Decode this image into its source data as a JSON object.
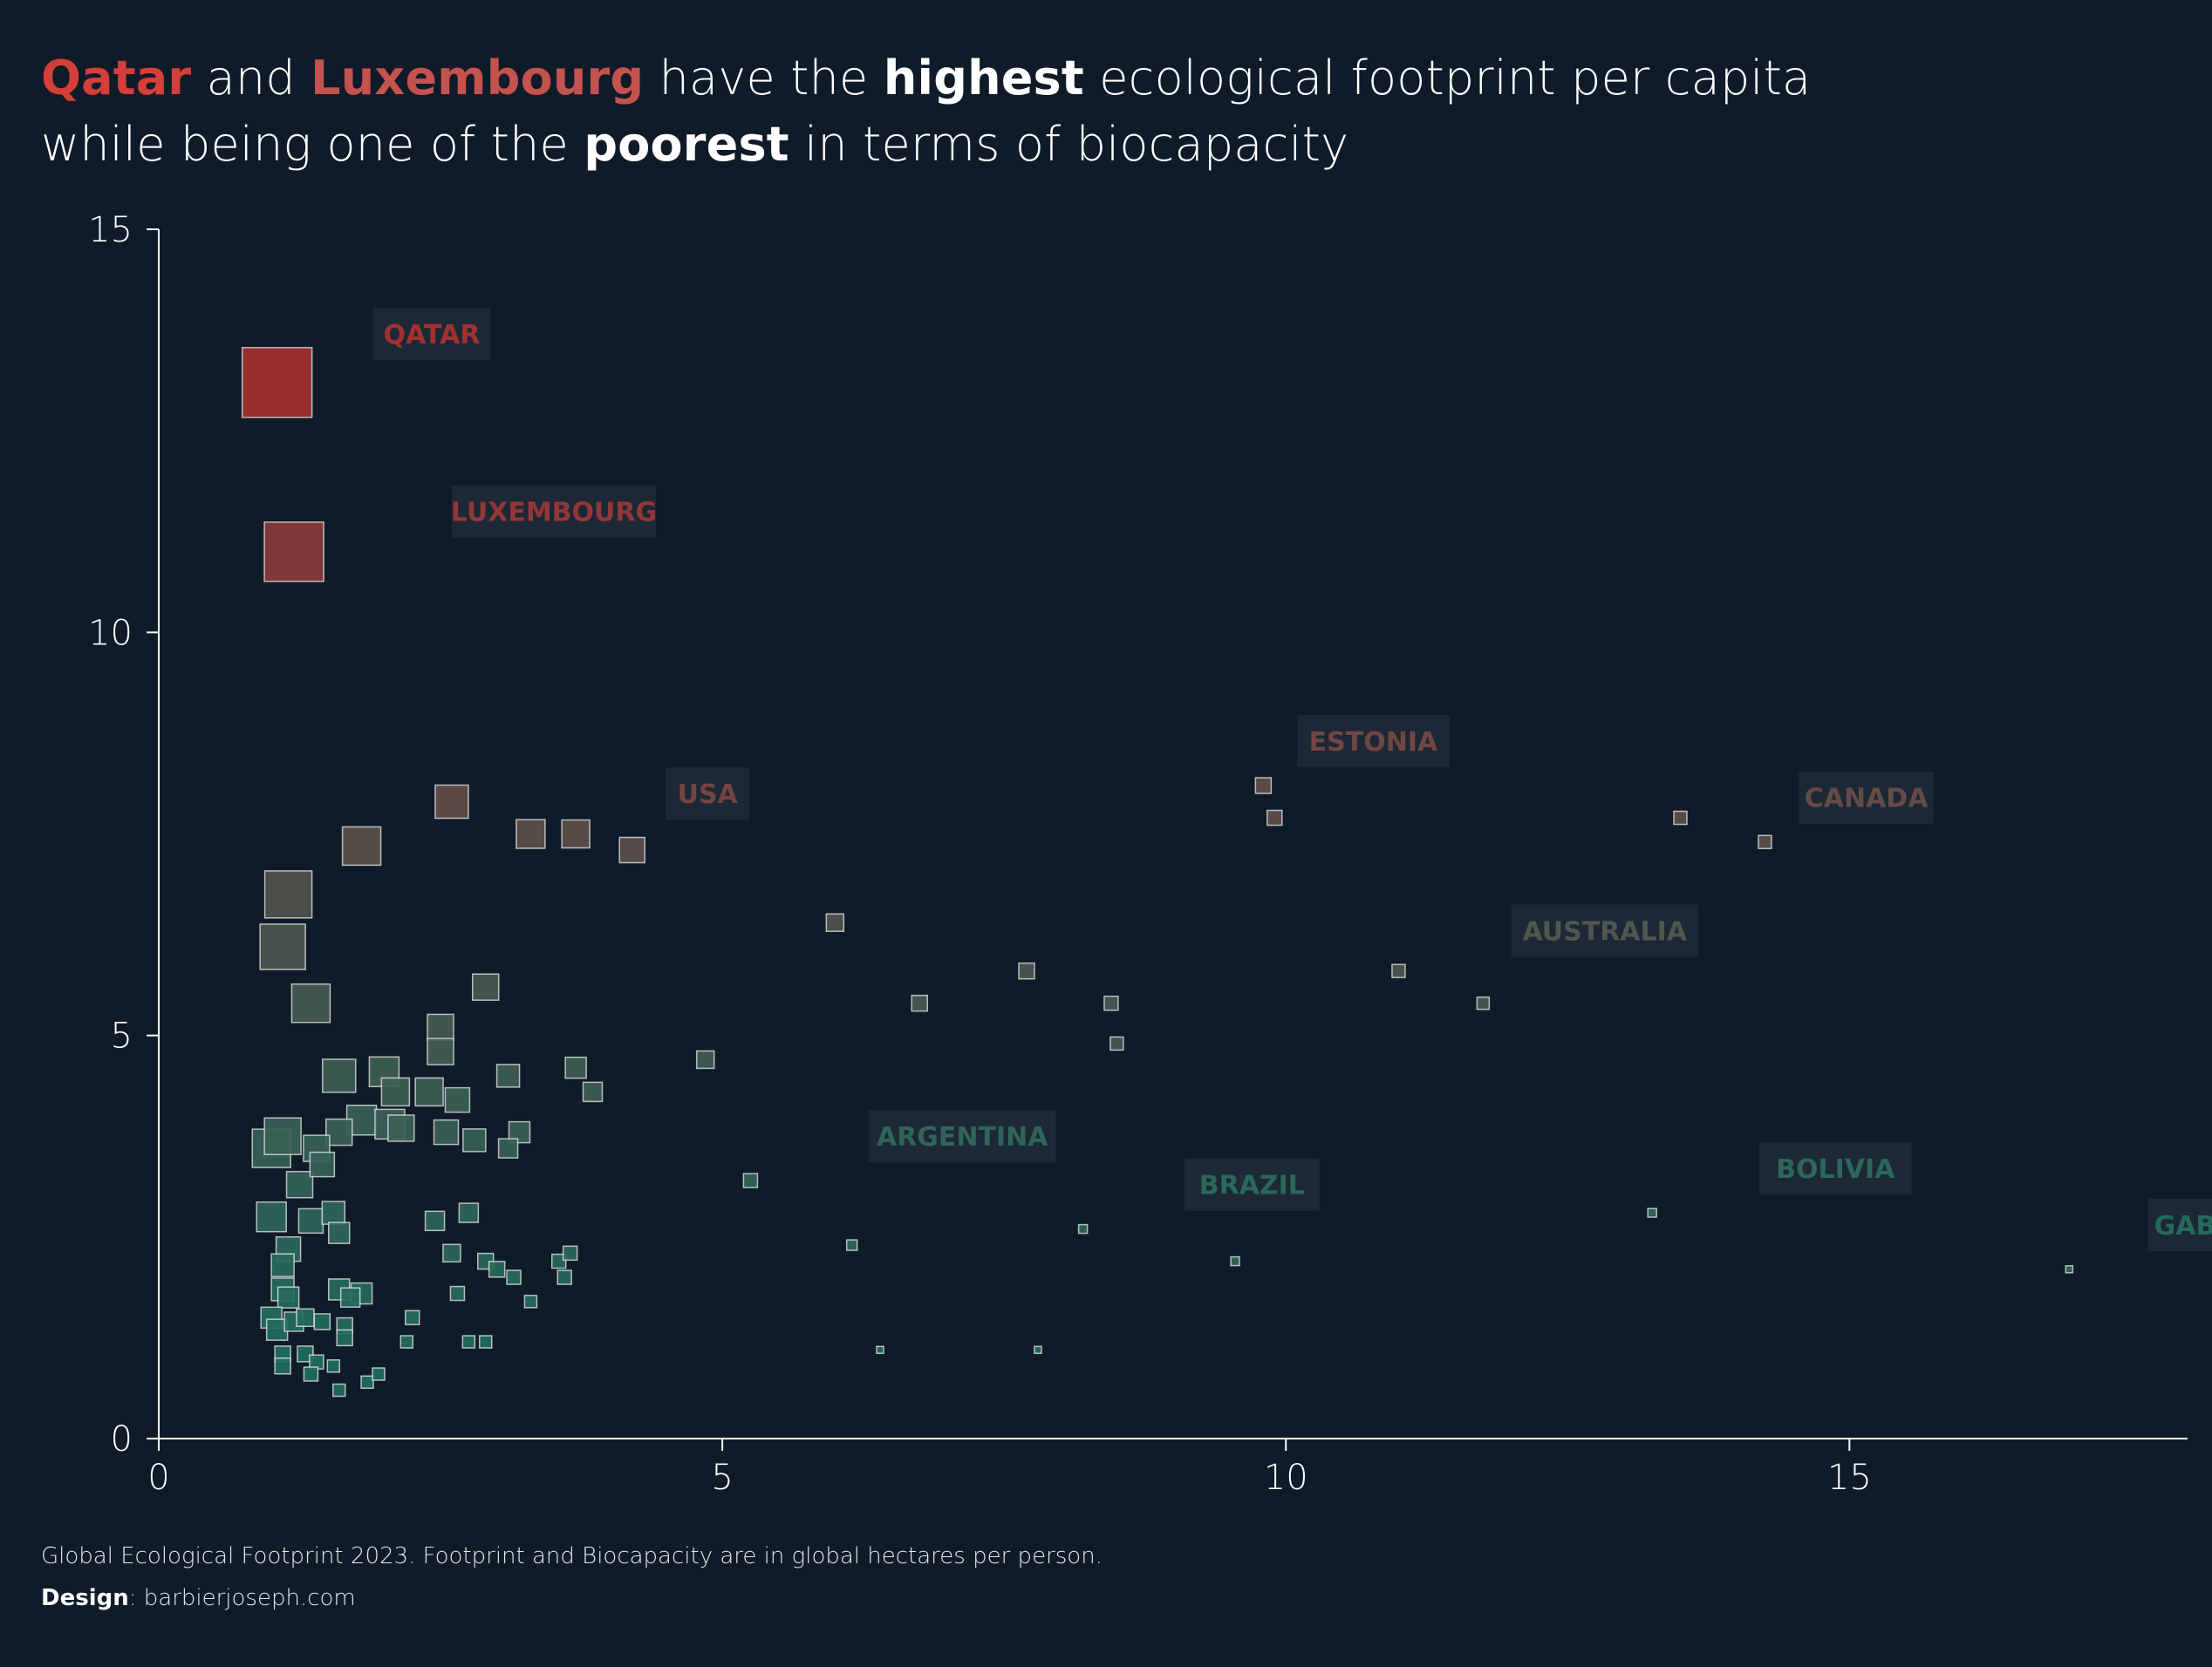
{
  "title": {
    "line1": {
      "w1": "Qatar",
      "w2": " and ",
      "w3": "Luxembourg",
      "w4": " have the ",
      "w5": "highest",
      "w6": " ecological footprint per capita"
    },
    "line2": {
      "w1": "while being one of the ",
      "w2": "poorest",
      "w3": " in terms of biocapacity"
    }
  },
  "footer": {
    "source": "Global Ecological Footprint 2023. Footprint and Biocapacity are in global hectares per person.",
    "design_label": "Design",
    "design_value": ": barbierjoseph.com"
  },
  "colors": {
    "background": "#101b29",
    "high": "#a3302f",
    "low": "#1f6d5e",
    "label_box": "#1f2937",
    "axis": "#ffffff"
  },
  "chart_data": {
    "type": "scatter",
    "xlim": [
      0,
      18
    ],
    "ylim": [
      0,
      15
    ],
    "xticks": [
      0,
      5,
      10,
      15
    ],
    "yticks": [
      0,
      5,
      10,
      15
    ],
    "xlabel": "",
    "ylabel": "",
    "points": [
      {
        "x": 1.05,
        "y": 13.1,
        "s": 80
      },
      {
        "x": 1.2,
        "y": 11.0,
        "s": 68
      },
      {
        "x": 1.15,
        "y": 6.75,
        "s": 54
      },
      {
        "x": 1.1,
        "y": 6.1,
        "s": 52
      },
      {
        "x": 1.35,
        "y": 5.4,
        "s": 44
      },
      {
        "x": 1.8,
        "y": 7.35,
        "s": 44
      },
      {
        "x": 2.6,
        "y": 7.9,
        "s": 38
      },
      {
        "x": 3.3,
        "y": 7.5,
        "s": 33
      },
      {
        "x": 3.7,
        "y": 7.5,
        "s": 32
      },
      {
        "x": 4.2,
        "y": 7.3,
        "s": 29
      },
      {
        "x": 2.9,
        "y": 5.6,
        "s": 30
      },
      {
        "x": 2.5,
        "y": 5.1,
        "s": 30
      },
      {
        "x": 2.5,
        "y": 4.8,
        "s": 30
      },
      {
        "x": 1.6,
        "y": 4.5,
        "s": 38
      },
      {
        "x": 2.0,
        "y": 4.55,
        "s": 34
      },
      {
        "x": 2.1,
        "y": 4.3,
        "s": 32
      },
      {
        "x": 2.4,
        "y": 4.3,
        "s": 32
      },
      {
        "x": 2.65,
        "y": 4.2,
        "s": 28
      },
      {
        "x": 3.1,
        "y": 4.5,
        "s": 26
      },
      {
        "x": 3.7,
        "y": 4.6,
        "s": 24
      },
      {
        "x": 3.85,
        "y": 4.3,
        "s": 22
      },
      {
        "x": 1.8,
        "y": 3.95,
        "s": 34
      },
      {
        "x": 2.05,
        "y": 3.9,
        "s": 34
      },
      {
        "x": 2.15,
        "y": 3.85,
        "s": 30
      },
      {
        "x": 1.6,
        "y": 3.8,
        "s": 30
      },
      {
        "x": 1.1,
        "y": 3.75,
        "s": 42
      },
      {
        "x": 1.0,
        "y": 3.6,
        "s": 44
      },
      {
        "x": 1.4,
        "y": 3.6,
        "s": 30
      },
      {
        "x": 1.45,
        "y": 3.4,
        "s": 28
      },
      {
        "x": 2.55,
        "y": 3.8,
        "s": 28
      },
      {
        "x": 2.8,
        "y": 3.7,
        "s": 26
      },
      {
        "x": 3.2,
        "y": 3.8,
        "s": 24
      },
      {
        "x": 3.1,
        "y": 3.6,
        "s": 22
      },
      {
        "x": 1.25,
        "y": 3.15,
        "s": 30
      },
      {
        "x": 1.0,
        "y": 2.75,
        "s": 34
      },
      {
        "x": 1.35,
        "y": 2.7,
        "s": 28
      },
      {
        "x": 1.55,
        "y": 2.8,
        "s": 26
      },
      {
        "x": 1.6,
        "y": 2.55,
        "s": 24
      },
      {
        "x": 1.15,
        "y": 2.35,
        "s": 28
      },
      {
        "x": 1.1,
        "y": 2.15,
        "s": 26
      },
      {
        "x": 2.45,
        "y": 2.7,
        "s": 22
      },
      {
        "x": 2.75,
        "y": 2.8,
        "s": 22
      },
      {
        "x": 2.6,
        "y": 2.3,
        "s": 20
      },
      {
        "x": 2.9,
        "y": 2.2,
        "s": 18
      },
      {
        "x": 3.0,
        "y": 2.1,
        "s": 18
      },
      {
        "x": 3.15,
        "y": 2.0,
        "s": 16
      },
      {
        "x": 3.55,
        "y": 2.2,
        "s": 16
      },
      {
        "x": 3.65,
        "y": 2.3,
        "s": 16
      },
      {
        "x": 3.6,
        "y": 2.0,
        "s": 16
      },
      {
        "x": 1.1,
        "y": 1.85,
        "s": 26
      },
      {
        "x": 1.15,
        "y": 1.75,
        "s": 24
      },
      {
        "x": 1.6,
        "y": 1.85,
        "s": 24
      },
      {
        "x": 1.8,
        "y": 1.8,
        "s": 24
      },
      {
        "x": 1.7,
        "y": 1.75,
        "s": 22
      },
      {
        "x": 1.0,
        "y": 1.5,
        "s": 24
      },
      {
        "x": 1.05,
        "y": 1.35,
        "s": 24
      },
      {
        "x": 1.2,
        "y": 1.45,
        "s": 22
      },
      {
        "x": 1.3,
        "y": 1.5,
        "s": 20
      },
      {
        "x": 1.45,
        "y": 1.45,
        "s": 18
      },
      {
        "x": 1.65,
        "y": 1.4,
        "s": 18
      },
      {
        "x": 1.65,
        "y": 1.25,
        "s": 18
      },
      {
        "x": 1.1,
        "y": 1.05,
        "s": 18
      },
      {
        "x": 1.3,
        "y": 1.05,
        "s": 18
      },
      {
        "x": 1.4,
        "y": 0.95,
        "s": 16
      },
      {
        "x": 1.55,
        "y": 0.9,
        "s": 14
      },
      {
        "x": 1.1,
        "y": 0.9,
        "s": 18
      },
      {
        "x": 1.35,
        "y": 0.8,
        "s": 16
      },
      {
        "x": 1.6,
        "y": 0.6,
        "s": 14
      },
      {
        "x": 1.85,
        "y": 0.7,
        "s": 14
      },
      {
        "x": 1.95,
        "y": 0.8,
        "s": 14
      },
      {
        "x": 2.25,
        "y": 1.5,
        "s": 16
      },
      {
        "x": 2.2,
        "y": 1.2,
        "s": 14
      },
      {
        "x": 2.65,
        "y": 1.8,
        "s": 16
      },
      {
        "x": 2.75,
        "y": 1.2,
        "s": 14
      },
      {
        "x": 2.9,
        "y": 1.2,
        "s": 14
      },
      {
        "x": 3.3,
        "y": 1.7,
        "s": 14
      },
      {
        "x": 4.85,
        "y": 4.7,
        "s": 20
      },
      {
        "x": 5.25,
        "y": 3.2,
        "s": 16
      },
      {
        "x": 6.0,
        "y": 6.4,
        "s": 20
      },
      {
        "x": 6.75,
        "y": 5.4,
        "s": 18
      },
      {
        "x": 6.15,
        "y": 2.4,
        "s": 12
      },
      {
        "x": 6.4,
        "y": 1.1,
        "s": 8
      },
      {
        "x": 7.7,
        "y": 5.8,
        "s": 18
      },
      {
        "x": 7.8,
        "y": 1.1,
        "s": 8
      },
      {
        "x": 8.45,
        "y": 5.4,
        "s": 16
      },
      {
        "x": 8.5,
        "y": 4.9,
        "s": 15
      },
      {
        "x": 8.2,
        "y": 2.6,
        "s": 10
      },
      {
        "x": 9.55,
        "y": 2.2,
        "s": 10
      },
      {
        "x": 9.65,
        "y": 3.2,
        "s": 12
      },
      {
        "x": 9.8,
        "y": 8.1,
        "s": 18
      },
      {
        "x": 9.9,
        "y": 7.7,
        "s": 17
      },
      {
        "x": 11.0,
        "y": 5.8,
        "s": 15
      },
      {
        "x": 11.75,
        "y": 5.4,
        "s": 14
      },
      {
        "x": 13.25,
        "y": 2.8,
        "s": 10
      },
      {
        "x": 13.5,
        "y": 7.7,
        "s": 15
      },
      {
        "x": 14.25,
        "y": 7.4,
        "s": 15
      },
      {
        "x": 16.95,
        "y": 2.1,
        "s": 8
      }
    ],
    "labels": [
      {
        "text": "QATAR",
        "x": 1.9,
        "y": 13.7,
        "level": 1.0
      },
      {
        "text": "LUXEMBOURG",
        "x": 2.6,
        "y": 11.5,
        "level": 0.9
      },
      {
        "text": "USA",
        "x": 4.5,
        "y": 8.0,
        "level": 0.7
      },
      {
        "text": "ESTONIA",
        "x": 10.1,
        "y": 8.65,
        "level": 0.68
      },
      {
        "text": "CANADA",
        "x": 14.55,
        "y": 7.95,
        "level": 0.6
      },
      {
        "text": "AUSTRALIA",
        "x": 12.0,
        "y": 6.3,
        "level": 0.45
      },
      {
        "text": "ARGENTINA",
        "x": 6.3,
        "y": 3.75,
        "level": 0.15
      },
      {
        "text": "BRAZIL",
        "x": 9.1,
        "y": 3.15,
        "level": 0.1
      },
      {
        "text": "BOLIVIA",
        "x": 14.2,
        "y": 3.35,
        "level": 0.12
      },
      {
        "text": "GABON",
        "x": 17.65,
        "y": 2.65,
        "level": 0.05
      }
    ]
  }
}
